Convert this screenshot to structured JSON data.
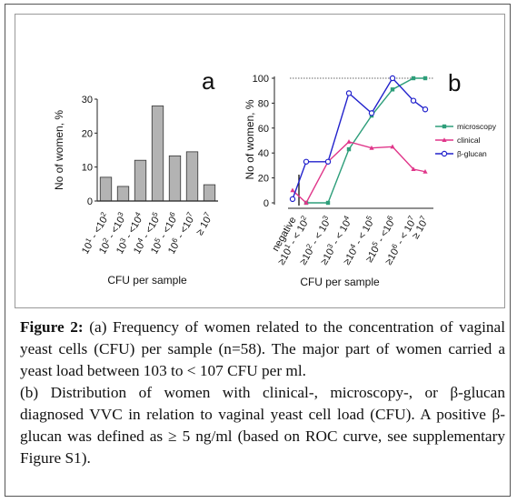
{
  "panel_a": {
    "label": "a",
    "ylabel": "No of women, %",
    "xlabel": "CFU per sample",
    "ytick_labels": [
      "0",
      "10",
      "20",
      "30"
    ],
    "category_labels": [
      [
        "10",
        "1",
        " - <10",
        "2"
      ],
      [
        "10",
        "2",
        " - <10",
        "3"
      ],
      [
        "10",
        "3",
        " - <10",
        "4"
      ],
      [
        "10",
        "4",
        " - <10",
        "5"
      ],
      [
        "10",
        "5",
        " - <10",
        "6"
      ],
      [
        "10",
        "6",
        " - <10",
        "7"
      ],
      [
        "≥ 10",
        "7",
        "",
        ""
      ]
    ]
  },
  "panel_b": {
    "label": "b",
    "ylabel": "No of women, %",
    "xlabel": "CFU per sample",
    "ytick_labels": [
      "0",
      "20",
      "40",
      "60",
      "80",
      "100"
    ],
    "category_labels": [
      [
        "negative",
        "",
        "",
        ""
      ],
      [
        "≥10",
        "1",
        " - < 10",
        "2"
      ],
      [
        "≥10",
        "2",
        " - < 10",
        "3"
      ],
      [
        "≥10",
        "3",
        " - < 10",
        "4"
      ],
      [
        "≥10",
        "4",
        " - < 10",
        "5"
      ],
      [
        "≥10",
        "5",
        " - <10",
        "6"
      ],
      [
        "≥10",
        "6",
        " - < 10",
        "7"
      ],
      [
        "≥ 10",
        "7",
        "",
        ""
      ]
    ]
  },
  "colors": {
    "bar_fill": "#b3b3b3",
    "microscopy": "#2e9e7a",
    "clinical": "#e0368a",
    "beta_glucan": "#2222cc"
  },
  "chart_data": [
    {
      "type": "bar",
      "values": [
        7,
        4.3,
        12,
        28,
        13.3,
        14.5,
        4.8
      ],
      "ylim": [
        0,
        30
      ]
    },
    {
      "type": "line",
      "ylim": [
        0,
        105
      ],
      "reference_line_y": 100,
      "legend_position": "right",
      "series": [
        {
          "name": "microscopy",
          "key": "microscopy",
          "marker": "square",
          "values": [
            null,
            0,
            0,
            43,
            70,
            91,
            100,
            100
          ]
        },
        {
          "name": "clinical",
          "key": "clinical",
          "marker": "triangle",
          "values": [
            10,
            0,
            33,
            49,
            44,
            45,
            27,
            25
          ]
        },
        {
          "name": "β-glucan",
          "key": "beta_glucan",
          "marker": "circle",
          "values": [
            3,
            33,
            33,
            88,
            72,
            100,
            82,
            75
          ]
        }
      ]
    }
  ],
  "caption": {
    "label": "Figure 2:",
    "text_a": " (a) Frequency of women related to the concentration of vaginal yeast cells (CFU) per sample (n=58). The major part of women carried a yeast load between 103 to < 107 CFU per ml.",
    "text_b": "(b) Distribution of women with clinical-, microscopy-, or β-glucan diagnosed VVC in relation to vaginal yeast cell load (CFU). A positive β-glucan was defined as ≥ 5 ng/ml (based on ROC curve, see supplementary Figure S1)."
  }
}
